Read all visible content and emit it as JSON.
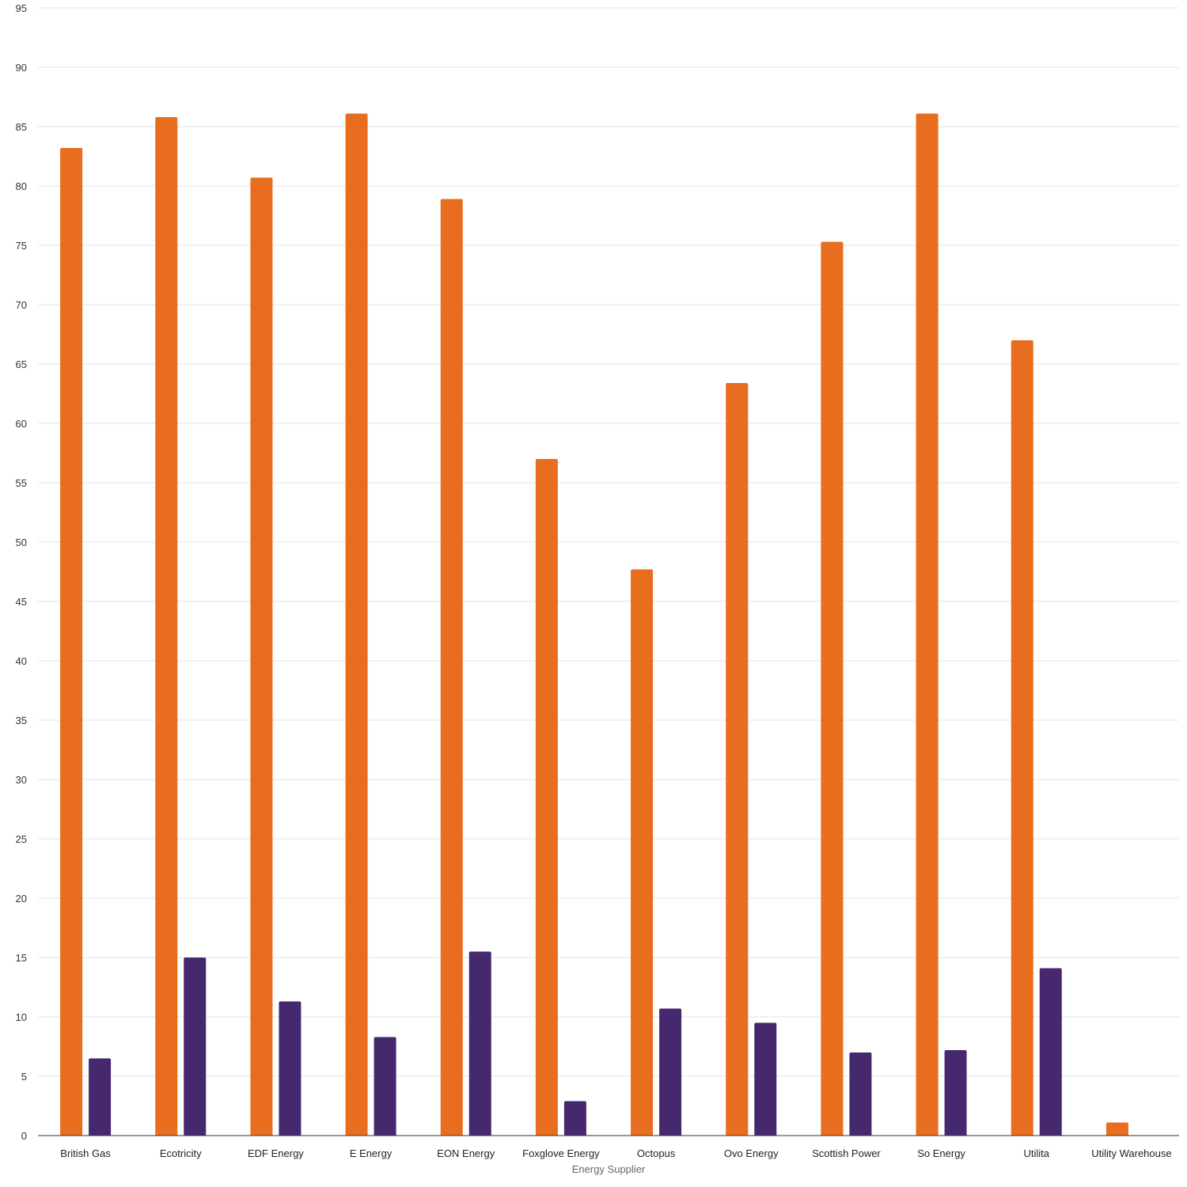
{
  "chart_data": {
    "type": "bar",
    "xlabel": "Energy Supplier",
    "ylabel": "",
    "ylim": [
      0,
      95
    ],
    "ytick_step": 5,
    "grid": true,
    "categories": [
      "British Gas",
      "Ecotricity",
      "EDF Energy",
      "E Energy",
      "EON Energy",
      "Foxglove Energy",
      "Octopus",
      "Ovo Energy",
      "Scottish Power",
      "So Energy",
      "Utilita",
      "Utility Warehouse"
    ],
    "series": [
      {
        "color": "#e86d1f",
        "values": [
          83.2,
          85.8,
          80.7,
          86.1,
          78.9,
          57.0,
          47.7,
          63.4,
          75.3,
          86.1,
          67.0,
          1.1
        ]
      },
      {
        "color": "#46286e",
        "values": [
          6.5,
          15.0,
          11.3,
          8.3,
          15.5,
          2.9,
          10.7,
          9.5,
          7.0,
          7.2,
          14.1,
          null
        ]
      }
    ]
  }
}
